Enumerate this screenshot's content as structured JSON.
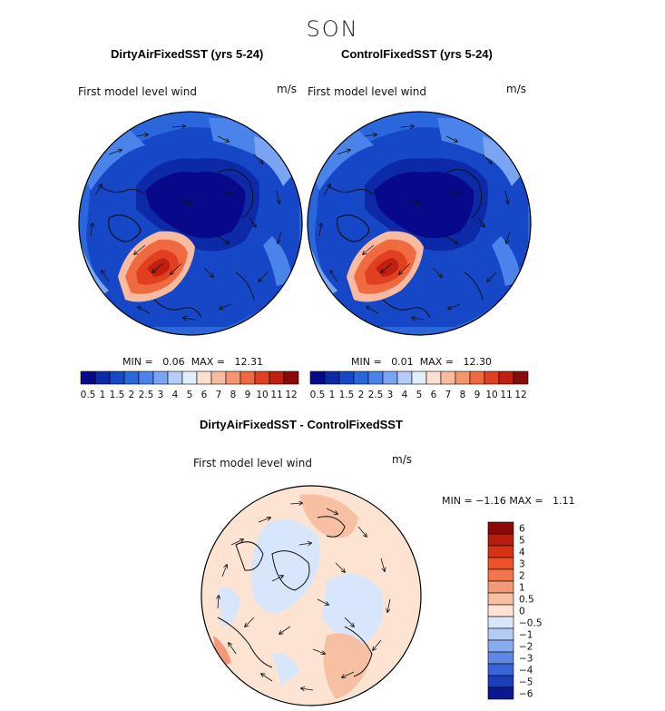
{
  "season_title": "SON",
  "panels": [
    {
      "title": "DirtyAirFixedSST (yrs 5-24)",
      "subtitle": "First model level wind",
      "units": "m/s",
      "min_label": "MIN =",
      "min_value": "0.06",
      "max_label": "MAX =",
      "max_value": "12.31"
    },
    {
      "title": "ControlFixedSST (yrs 5-24)",
      "subtitle": "First model level wind",
      "units": "m/s",
      "min_label": "MIN =",
      "min_value": "0.01",
      "max_label": "MAX =",
      "max_value": "12.30"
    },
    {
      "title": "DirtyAirFixedSST - ControlFixedSST",
      "subtitle": "First model level wind",
      "units": "m/s",
      "min_label": "MIN =",
      "min_value": "−1.16",
      "max_label": "MAX =",
      "max_value": "1.11"
    }
  ],
  "chart_data": [
    {
      "type": "heatmap",
      "projection": "north polar stereographic",
      "title": "DirtyAirFixedSST (yrs 5-24)",
      "subtitle": "First model level wind",
      "units": "m/s",
      "min": 0.06,
      "max": 12.31,
      "colorbar_levels": [
        "0.5",
        "1",
        "1.5",
        "2",
        "2.5",
        "3",
        "4",
        "5",
        "6",
        "7",
        "8",
        "9",
        "10",
        "11",
        "12"
      ],
      "colorbar_colors": [
        "#08088a",
        "#0c2aa8",
        "#1547c6",
        "#2a66dc",
        "#4a84ea",
        "#7aa5f2",
        "#b4cdf8",
        "#e3eefd",
        "#fde0cf",
        "#f9bba0",
        "#f5956f",
        "#ef6a40",
        "#e04020",
        "#c02010",
        "#8a0a0a"
      ]
    },
    {
      "type": "heatmap",
      "projection": "north polar stereographic",
      "title": "ControlFixedSST (yrs 5-24)",
      "subtitle": "First model level wind",
      "units": "m/s",
      "min": 0.01,
      "max": 12.3,
      "colorbar_levels": [
        "0.5",
        "1",
        "1.5",
        "2",
        "2.5",
        "3",
        "4",
        "5",
        "6",
        "7",
        "8",
        "9",
        "10",
        "11",
        "12"
      ],
      "colorbar_colors": [
        "#08088a",
        "#0c2aa8",
        "#1547c6",
        "#2a66dc",
        "#4a84ea",
        "#7aa5f2",
        "#b4cdf8",
        "#e3eefd",
        "#fde0cf",
        "#f9bba0",
        "#f5956f",
        "#ef6a40",
        "#e04020",
        "#c02010",
        "#8a0a0a"
      ]
    },
    {
      "type": "heatmap",
      "projection": "north polar stereographic",
      "title": "DirtyAirFixedSST - ControlFixedSST",
      "subtitle": "First model level wind",
      "units": "m/s",
      "min": -1.16,
      "max": 1.11,
      "colorbar_levels": [
        "6",
        "5",
        "4",
        "3",
        "2",
        "1",
        "0.5",
        "0",
        "−0.5",
        "−1",
        "−2",
        "−3",
        "−4",
        "−5",
        "−6"
      ],
      "colorbar_colors": [
        "#8a0a0a",
        "#b81c0c",
        "#d83214",
        "#ee5028",
        "#f2764c",
        "#f49a78",
        "#f8c0a2",
        "#fde4d2",
        "#d8e6fb",
        "#b2ccf4",
        "#8aacee",
        "#5f88e6",
        "#3a64da",
        "#1c3ebe",
        "#0a1890"
      ]
    }
  ]
}
